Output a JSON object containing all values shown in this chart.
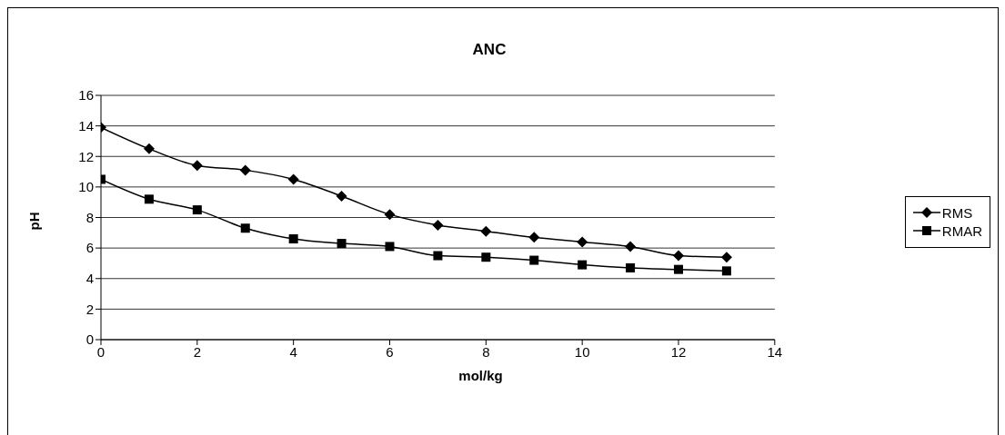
{
  "chart_data": {
    "type": "line",
    "title": "ANC",
    "xlabel": "mol/kg",
    "ylabel": "pH",
    "x": [
      0,
      1,
      2,
      3,
      4,
      5,
      6,
      7,
      8,
      9,
      10,
      11,
      12,
      13
    ],
    "series": [
      {
        "name": "RMS",
        "color": "#000000",
        "marker": "diamond",
        "values": [
          13.9,
          12.5,
          11.4,
          11.1,
          10.5,
          9.4,
          8.2,
          7.5,
          7.1,
          6.7,
          6.4,
          6.1,
          5.5,
          5.4
        ]
      },
      {
        "name": "RMAR",
        "color": "#000000",
        "marker": "square",
        "values": [
          10.5,
          9.2,
          8.5,
          7.3,
          6.6,
          6.3,
          6.1,
          5.5,
          5.4,
          5.2,
          4.9,
          4.7,
          4.6,
          4.5
        ]
      }
    ],
    "xlim": [
      0,
      14
    ],
    "xticks": [
      0,
      2,
      4,
      6,
      8,
      10,
      12,
      14
    ],
    "ylim": [
      0,
      16
    ],
    "yticks": [
      0,
      2,
      4,
      6,
      8,
      10,
      12,
      14,
      16
    ],
    "grid": "y",
    "legend": "right",
    "line_style": "solid"
  }
}
